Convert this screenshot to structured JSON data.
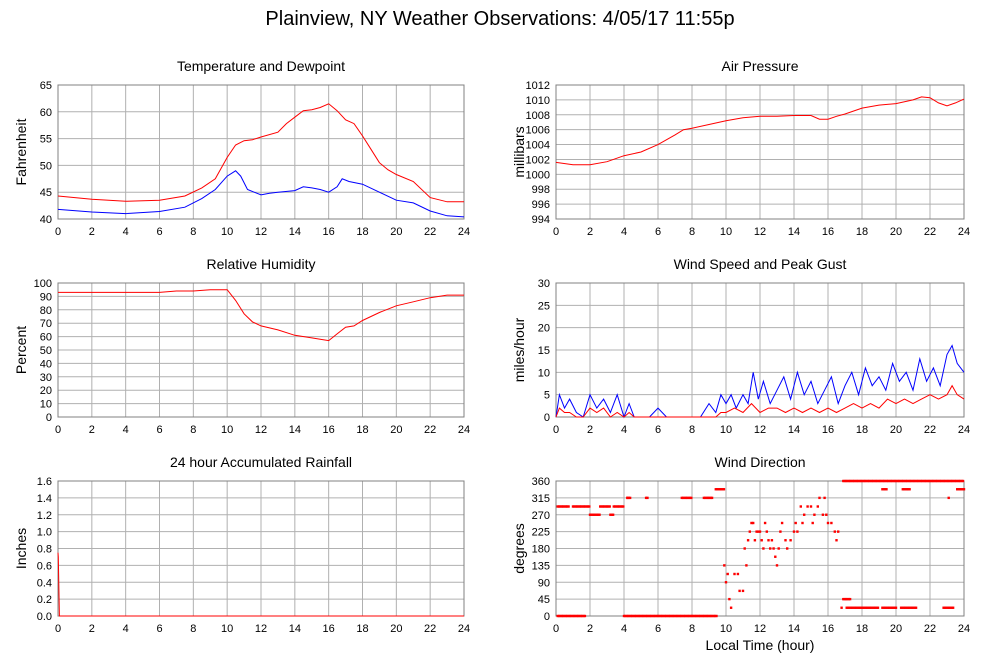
{
  "page_title": "Plainview, NY Weather Observations: 4/05/17 11:55p",
  "colors": {
    "red": "#ff0000",
    "blue": "#0000ff",
    "grid": "#b0b0b0"
  },
  "chart_data": [
    {
      "id": "temp",
      "type": "line",
      "title": "Temperature and Dewpoint",
      "ylabel": "Fahrenheit",
      "xlabel": "",
      "xlim": [
        0,
        24
      ],
      "ylim": [
        40,
        65
      ],
      "yticks": [
        40,
        45,
        50,
        55,
        60,
        65
      ],
      "xticks": [
        0,
        2,
        4,
        6,
        8,
        10,
        12,
        14,
        16,
        18,
        20,
        22,
        24
      ],
      "grid": true,
      "series": [
        {
          "color": "#ff0000",
          "x": [
            0,
            2,
            4,
            6,
            7.5,
            8.5,
            9.3,
            10,
            10.5,
            11,
            11.5,
            12,
            13,
            13.5,
            14,
            14.5,
            15,
            15.5,
            16,
            16.5,
            17,
            17.5,
            18,
            18.5,
            19,
            19.5,
            20,
            21,
            22,
            23,
            24
          ],
          "y": [
            44.3,
            43.7,
            43.3,
            43.5,
            44.3,
            45.8,
            47.5,
            51.5,
            53.8,
            54.6,
            54.8,
            55.3,
            56.2,
            57.8,
            59.0,
            60.2,
            60.4,
            60.8,
            61.5,
            60.2,
            58.5,
            57.8,
            55.5,
            53.0,
            50.5,
            49.2,
            48.3,
            47.0,
            44.0,
            43.2,
            43.2
          ]
        },
        {
          "color": "#0000ff",
          "x": [
            0,
            2,
            4,
            6,
            7.5,
            8.5,
            9.3,
            10,
            10.5,
            10.8,
            11.2,
            11.6,
            12,
            12.5,
            13,
            14,
            14.5,
            15,
            15.5,
            16,
            16.5,
            16.8,
            17.2,
            18,
            19,
            20,
            21,
            22,
            23,
            24
          ],
          "y": [
            41.8,
            41.3,
            41.0,
            41.4,
            42.2,
            43.8,
            45.5,
            48.0,
            49.0,
            48.0,
            45.5,
            45.0,
            44.5,
            44.8,
            45.0,
            45.3,
            46.0,
            45.8,
            45.5,
            45.0,
            46.0,
            47.5,
            47.0,
            46.5,
            45.0,
            43.5,
            43.0,
            41.5,
            40.6,
            40.4
          ]
        }
      ]
    },
    {
      "id": "press",
      "type": "line",
      "title": "Air Pressure",
      "ylabel": "millibars",
      "xlabel": "",
      "xlim": [
        0,
        24
      ],
      "ylim": [
        994,
        1012
      ],
      "yticks": [
        994,
        996,
        998,
        1000,
        1002,
        1004,
        1006,
        1008,
        1010,
        1012
      ],
      "xticks": [
        0,
        2,
        4,
        6,
        8,
        10,
        12,
        14,
        16,
        18,
        20,
        22,
        24
      ],
      "grid": true,
      "series": [
        {
          "color": "#ff0000",
          "x": [
            0,
            1,
            2,
            3,
            4,
            5,
            6,
            7,
            7.5,
            8,
            9,
            10,
            11,
            12,
            13,
            14,
            15,
            15.5,
            16,
            16.5,
            17,
            18,
            19,
            20,
            21,
            21.5,
            22,
            22.5,
            23,
            23.5,
            24
          ],
          "y": [
            1001.6,
            1001.3,
            1001.3,
            1001.7,
            1002.5,
            1003.0,
            1004.0,
            1005.3,
            1006.0,
            1006.2,
            1006.7,
            1007.2,
            1007.6,
            1007.8,
            1007.8,
            1007.9,
            1007.9,
            1007.4,
            1007.4,
            1007.8,
            1008.1,
            1008.9,
            1009.3,
            1009.5,
            1010.0,
            1010.4,
            1010.3,
            1009.6,
            1009.2,
            1009.6,
            1010.1
          ]
        }
      ]
    },
    {
      "id": "rh",
      "type": "line",
      "title": "Relative Humidity",
      "ylabel": "Percent",
      "xlabel": "",
      "xlim": [
        0,
        24
      ],
      "ylim": [
        0,
        100
      ],
      "yticks": [
        0,
        10,
        20,
        30,
        40,
        50,
        60,
        70,
        80,
        90,
        100
      ],
      "xticks": [
        0,
        2,
        4,
        6,
        8,
        10,
        12,
        14,
        16,
        18,
        20,
        22,
        24
      ],
      "grid": true,
      "series": [
        {
          "color": "#ff0000",
          "x": [
            0,
            2,
            4,
            6,
            7,
            8,
            9,
            10,
            10.5,
            11,
            11.5,
            12,
            13,
            14,
            15,
            15.5,
            16,
            16.5,
            17,
            17.5,
            18,
            19,
            20,
            21,
            22,
            23,
            24
          ],
          "y": [
            93,
            93,
            93,
            93,
            94,
            94,
            95,
            95,
            87,
            77,
            71,
            68,
            65,
            61,
            59,
            58,
            57,
            62,
            67,
            68,
            72,
            78,
            83,
            86,
            89,
            91,
            91
          ]
        }
      ]
    },
    {
      "id": "wind",
      "type": "line",
      "title": "Wind Speed and Peak Gust",
      "ylabel": "miles/hour",
      "xlabel": "",
      "xlim": [
        0,
        24
      ],
      "ylim": [
        0,
        30
      ],
      "yticks": [
        0,
        5,
        10,
        15,
        20,
        25,
        30
      ],
      "xticks": [
        0,
        2,
        4,
        6,
        8,
        10,
        12,
        14,
        16,
        18,
        20,
        22,
        24
      ],
      "grid": true,
      "series": [
        {
          "color": "#0000ff",
          "x": [
            0,
            0.2,
            0.5,
            0.8,
            1.2,
            1.6,
            2.0,
            2.4,
            2.8,
            3.2,
            3.6,
            4.0,
            4.3,
            4.6,
            5.0,
            5.5,
            6.0,
            6.5,
            7.0,
            7.5,
            8.0,
            8.5,
            9.0,
            9.4,
            9.7,
            10.0,
            10.3,
            10.6,
            11.0,
            11.3,
            11.6,
            11.9,
            12.2,
            12.6,
            13.0,
            13.4,
            13.8,
            14.2,
            14.6,
            15.0,
            15.4,
            15.8,
            16.2,
            16.6,
            17.0,
            17.4,
            17.8,
            18.2,
            18.6,
            19.0,
            19.4,
            19.8,
            20.2,
            20.6,
            21.0,
            21.4,
            21.8,
            22.2,
            22.6,
            23.0,
            23.3,
            23.6,
            24
          ],
          "y": [
            0,
            5,
            2,
            4,
            1,
            0,
            5,
            2,
            4,
            1,
            5,
            0,
            3,
            0,
            0,
            0,
            2,
            0,
            0,
            0,
            0,
            0,
            3,
            1,
            5,
            3,
            5,
            2,
            5,
            3,
            10,
            4,
            8,
            3,
            6,
            9,
            4,
            10,
            5,
            8,
            3,
            6,
            9,
            3,
            7,
            10,
            5,
            11,
            7,
            9,
            6,
            12,
            8,
            10,
            6,
            13,
            8,
            11,
            7,
            14,
            16,
            12,
            10
          ]
        },
        {
          "color": "#ff0000",
          "x": [
            0,
            0.2,
            0.5,
            0.8,
            1.2,
            1.6,
            2.0,
            2.4,
            2.8,
            3.2,
            3.6,
            4.0,
            4.3,
            4.6,
            5.0,
            6.0,
            7.0,
            8.0,
            9.0,
            9.4,
            9.7,
            10.0,
            10.5,
            11.0,
            11.5,
            12.0,
            12.5,
            13.0,
            13.5,
            14.0,
            14.5,
            15.0,
            15.5,
            16.0,
            16.5,
            17.0,
            17.5,
            18.0,
            18.5,
            19.0,
            19.5,
            20.0,
            20.5,
            21.0,
            21.5,
            22.0,
            22.5,
            23.0,
            23.3,
            23.6,
            24
          ],
          "y": [
            0,
            2,
            1,
            1,
            0,
            0,
            2,
            1,
            2,
            0,
            1,
            0,
            1,
            0,
            0,
            0,
            0,
            0,
            0,
            0,
            1,
            1,
            2,
            1,
            3,
            1,
            2,
            2,
            1,
            2,
            1,
            2,
            1,
            2,
            1,
            2,
            3,
            2,
            3,
            2,
            4,
            3,
            4,
            3,
            4,
            5,
            4,
            5,
            7,
            5,
            4
          ]
        }
      ]
    },
    {
      "id": "rain",
      "type": "line",
      "title": "24 hour Accumulated Rainfall",
      "ylabel": "Inches",
      "xlabel": "",
      "xlim": [
        0,
        24
      ],
      "ylim": [
        0,
        1.6
      ],
      "yticks": [
        0.0,
        0.2,
        0.4,
        0.6,
        0.8,
        1.0,
        1.2,
        1.4,
        1.6
      ],
      "ytick_labels": [
        "0.0",
        "0.2",
        "0.4",
        "0.6",
        "0.8",
        "1.0",
        "1.2",
        "1.4",
        "1.6"
      ],
      "xticks": [
        0,
        2,
        4,
        6,
        8,
        10,
        12,
        14,
        16,
        18,
        20,
        22,
        24
      ],
      "grid": true,
      "series": [
        {
          "color": "#ff0000",
          "x": [
            0,
            0.02,
            0.08,
            24
          ],
          "y": [
            0.75,
            0.7,
            0.0,
            0.0
          ]
        }
      ]
    },
    {
      "id": "dir",
      "type": "scatter",
      "title": "Wind Direction",
      "ylabel": "degrees",
      "xlabel": "Local Time (hour)",
      "xlim": [
        0,
        24
      ],
      "ylim": [
        0,
        360
      ],
      "yticks": [
        0,
        45,
        90,
        135,
        180,
        225,
        270,
        315,
        360
      ],
      "xticks": [
        0,
        2,
        4,
        6,
        8,
        10,
        12,
        14,
        16,
        18,
        20,
        22,
        24
      ],
      "grid": true,
      "series": [
        {
          "color": "#ff0000",
          "segments": [
            [
              0.1,
              0.8,
              292
            ],
            [
              0.1,
              1.7,
              0
            ],
            [
              1.0,
              2.0,
              292
            ],
            [
              2.0,
              2.6,
              270
            ],
            [
              2.6,
              3.2,
              292
            ],
            [
              3.2,
              3.4,
              270
            ],
            [
              3.4,
              4.0,
              292
            ],
            [
              4.0,
              9.5,
              0
            ],
            [
              4.2,
              4.4,
              315
            ],
            [
              5.3,
              5.4,
              315
            ],
            [
              7.4,
              8.0,
              315
            ],
            [
              8.7,
              9.2,
              315
            ],
            [
              9.4,
              9.9,
              338
            ],
            [
              16.9,
              24,
              360
            ],
            [
              16.9,
              17.3,
              45
            ],
            [
              17.1,
              19.0,
              22
            ],
            [
              19.2,
              20.0,
              22
            ],
            [
              20.3,
              21.2,
              22
            ],
            [
              22.8,
              23.4,
              22
            ],
            [
              19.2,
              19.5,
              338
            ],
            [
              20.4,
              20.8,
              338
            ],
            [
              23.6,
              24,
              338
            ]
          ],
          "points": [
            [
              4.2,
              315
            ],
            [
              9.9,
              135
            ],
            [
              10.0,
              90
            ],
            [
              10.1,
              112
            ],
            [
              10.2,
              45
            ],
            [
              10.3,
              22
            ],
            [
              10.5,
              112
            ],
            [
              10.7,
              112
            ],
            [
              10.8,
              67
            ],
            [
              11.0,
              67
            ],
            [
              11.1,
              180
            ],
            [
              11.2,
              135
            ],
            [
              11.3,
              202
            ],
            [
              11.4,
              225
            ],
            [
              11.5,
              248
            ],
            [
              11.6,
              248
            ],
            [
              11.7,
              202
            ],
            [
              11.8,
              225
            ],
            [
              11.9,
              225
            ],
            [
              12.0,
              225
            ],
            [
              12.1,
              202
            ],
            [
              12.2,
              180
            ],
            [
              12.3,
              248
            ],
            [
              12.4,
              225
            ],
            [
              12.5,
              202
            ],
            [
              12.6,
              180
            ],
            [
              12.7,
              202
            ],
            [
              12.8,
              180
            ],
            [
              12.9,
              158
            ],
            [
              13.0,
              135
            ],
            [
              13.1,
              180
            ],
            [
              13.2,
              225
            ],
            [
              13.3,
              248
            ],
            [
              13.5,
              202
            ],
            [
              13.6,
              180
            ],
            [
              13.8,
              202
            ],
            [
              14.0,
              225
            ],
            [
              14.1,
              248
            ],
            [
              14.2,
              225
            ],
            [
              14.4,
              292
            ],
            [
              14.5,
              248
            ],
            [
              14.6,
              270
            ],
            [
              14.8,
              292
            ],
            [
              15.0,
              292
            ],
            [
              15.1,
              248
            ],
            [
              15.2,
              270
            ],
            [
              15.4,
              292
            ],
            [
              15.5,
              315
            ],
            [
              15.7,
              270
            ],
            [
              15.8,
              315
            ],
            [
              15.9,
              270
            ],
            [
              16.0,
              248
            ],
            [
              16.2,
              248
            ],
            [
              16.4,
              225
            ],
            [
              16.5,
              202
            ],
            [
              16.6,
              225
            ],
            [
              16.8,
              22
            ],
            [
              23.1,
              315
            ]
          ]
        }
      ]
    }
  ]
}
